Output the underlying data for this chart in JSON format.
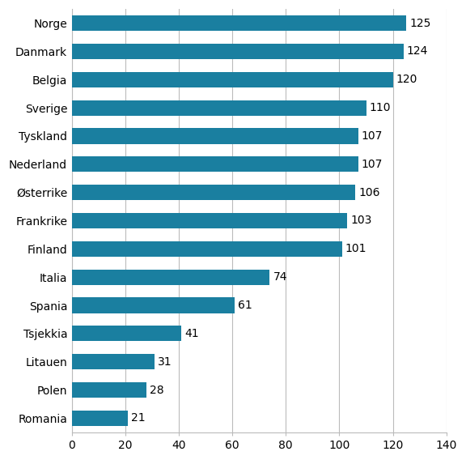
{
  "categories": [
    "Norge",
    "Danmark",
    "Belgia",
    "Sverige",
    "Tyskland",
    "Nederland",
    "Østerrike",
    "Frankrike",
    "Finland",
    "Italia",
    "Spania",
    "Tsjekkia",
    "Litauen",
    "Polen",
    "Romania"
  ],
  "values": [
    125,
    124,
    120,
    110,
    107,
    107,
    106,
    103,
    101,
    74,
    61,
    41,
    31,
    28,
    21
  ],
  "bar_color": "#1a7fa0",
  "xlim": [
    0,
    140
  ],
  "xticks": [
    0,
    20,
    40,
    60,
    80,
    100,
    120,
    140
  ],
  "label_fontsize": 10,
  "tick_fontsize": 10,
  "bar_height": 0.55,
  "background_color": "#ffffff",
  "grid_color": "#bbbbbb"
}
